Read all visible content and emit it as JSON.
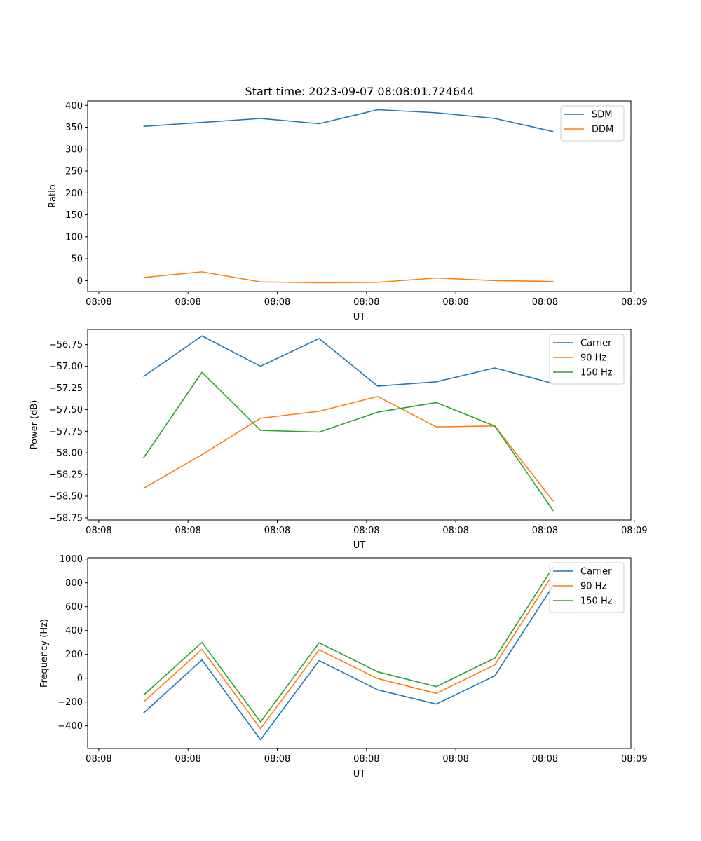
{
  "figure": {
    "title": "Start time: 2023-09-07 08:08:01.724644"
  },
  "chart_data": [
    {
      "type": "line",
      "title": "Start time: 2023-09-07 08:08:01.724644",
      "xlabel": "UT",
      "ylabel": "Ratio",
      "xlim": [
        0,
        9.74
      ],
      "ylim": [
        -25,
        410
      ],
      "x_ticks": [
        0.2,
        1.8,
        3.4,
        5.0,
        6.6,
        8.2,
        9.8
      ],
      "x_tick_labels": [
        "08:08",
        "08:08",
        "08:08",
        "08:08",
        "08:08",
        "08:08",
        "08:09"
      ],
      "y_ticks": [
        0,
        50,
        100,
        150,
        200,
        250,
        300,
        350,
        400
      ],
      "y_tick_labels": [
        "0",
        "50",
        "100",
        "150",
        "200",
        "250",
        "300",
        "350",
        "400"
      ],
      "legend_position": "top-right",
      "x": [
        1,
        2.05,
        3.1,
        4.15,
        5.2,
        6.25,
        7.3,
        8.35
      ],
      "series": [
        {
          "name": "SDM",
          "color": "#1f77b4",
          "values": [
            352,
            361,
            370,
            358,
            390,
            383,
            370,
            340
          ]
        },
        {
          "name": "DDM",
          "color": "#ff7f0e",
          "values": [
            7,
            20,
            -3,
            -5,
            -4,
            6,
            0,
            -2
          ]
        }
      ]
    },
    {
      "type": "line",
      "title": "",
      "xlabel": "UT",
      "ylabel": "Power (dB)",
      "xlim": [
        0,
        9.74
      ],
      "ylim": [
        -58.775,
        -56.575
      ],
      "x_ticks": [
        0.2,
        1.8,
        3.4,
        5.0,
        6.6,
        8.2,
        9.8
      ],
      "x_tick_labels": [
        "08:08",
        "08:08",
        "08:08",
        "08:08",
        "08:08",
        "08:08",
        "08:09"
      ],
      "y_ticks": [
        -58.75,
        -58.5,
        -58.25,
        -58.0,
        -57.75,
        -57.5,
        -57.25,
        -57.0,
        -56.75
      ],
      "y_tick_labels": [
        "−58.75",
        "−58.50",
        "−58.25",
        "−58.00",
        "−57.75",
        "−57.50",
        "−57.25",
        "−57.00",
        "−56.75"
      ],
      "legend_position": "top-right",
      "x": [
        1,
        2.05,
        3.1,
        4.15,
        5.2,
        6.25,
        7.3,
        8.35
      ],
      "series": [
        {
          "name": "Carrier",
          "color": "#1f77b4",
          "values": [
            -57.12,
            -56.65,
            -57.0,
            -56.68,
            -57.23,
            -57.18,
            -57.02,
            -57.2
          ]
        },
        {
          "name": "90 Hz",
          "color": "#ff7f0e",
          "values": [
            -58.41,
            -58.02,
            -57.6,
            -57.52,
            -57.35,
            -57.7,
            -57.69,
            -58.56
          ]
        },
        {
          "name": "150 Hz",
          "color": "#2ca02c",
          "values": [
            -58.06,
            -57.07,
            -57.74,
            -57.76,
            -57.53,
            -57.42,
            -57.69,
            -58.67
          ]
        }
      ]
    },
    {
      "type": "line",
      "title": "",
      "xlabel": "UT",
      "ylabel": "Frequency (Hz)",
      "xlim": [
        0,
        9.74
      ],
      "ylim": [
        -590,
        1010
      ],
      "x_ticks": [
        0.2,
        1.8,
        3.4,
        5.0,
        6.6,
        8.2,
        9.8
      ],
      "x_tick_labels": [
        "08:08",
        "08:08",
        "08:08",
        "08:08",
        "08:08",
        "08:08",
        "08:09"
      ],
      "y_ticks": [
        -400,
        -200,
        0,
        200,
        400,
        600,
        800,
        1000
      ],
      "y_tick_labels": [
        "−400",
        "−200",
        "0",
        "200",
        "400",
        "600",
        "800",
        "1000"
      ],
      "legend_position": "top-right",
      "x": [
        1,
        2.05,
        3.1,
        4.15,
        5.2,
        6.25,
        7.3,
        8.35
      ],
      "series": [
        {
          "name": "Carrier",
          "color": "#1f77b4",
          "values": [
            -293,
            153,
            -517,
            148,
            -97,
            -217,
            20,
            780
          ]
        },
        {
          "name": "90 Hz",
          "color": "#ff7f0e",
          "values": [
            -200,
            242,
            -423,
            238,
            -3,
            -127,
            112,
            878
          ]
        },
        {
          "name": "150 Hz",
          "color": "#2ca02c",
          "values": [
            -143,
            300,
            -367,
            297,
            53,
            -70,
            168,
            935
          ]
        }
      ]
    }
  ]
}
